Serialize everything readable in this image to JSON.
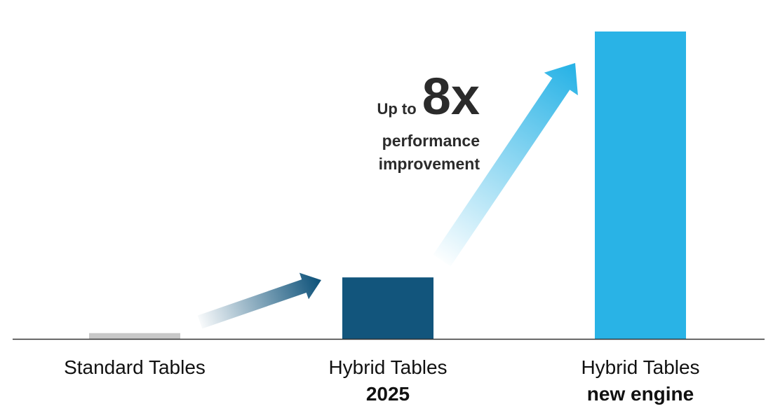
{
  "chart_data": {
    "type": "bar",
    "title": "",
    "xlabel": "",
    "ylabel": "",
    "grid": false,
    "ylim": [
      0,
      8
    ],
    "categories": [
      {
        "label": "Standard Tables",
        "sublabel": ""
      },
      {
        "label": "Hybrid Tables",
        "sublabel": "2025"
      },
      {
        "label": "Hybrid Tables",
        "sublabel": "new engine"
      }
    ],
    "values": [
      0.15,
      1.6,
      8
    ],
    "colors": [
      "#c8c8c8",
      "#12557c",
      "#29b3e6"
    ],
    "annotation": {
      "prefix": "Up to",
      "highlight": "8x",
      "line1": "performance",
      "line2": "improvement"
    }
  }
}
